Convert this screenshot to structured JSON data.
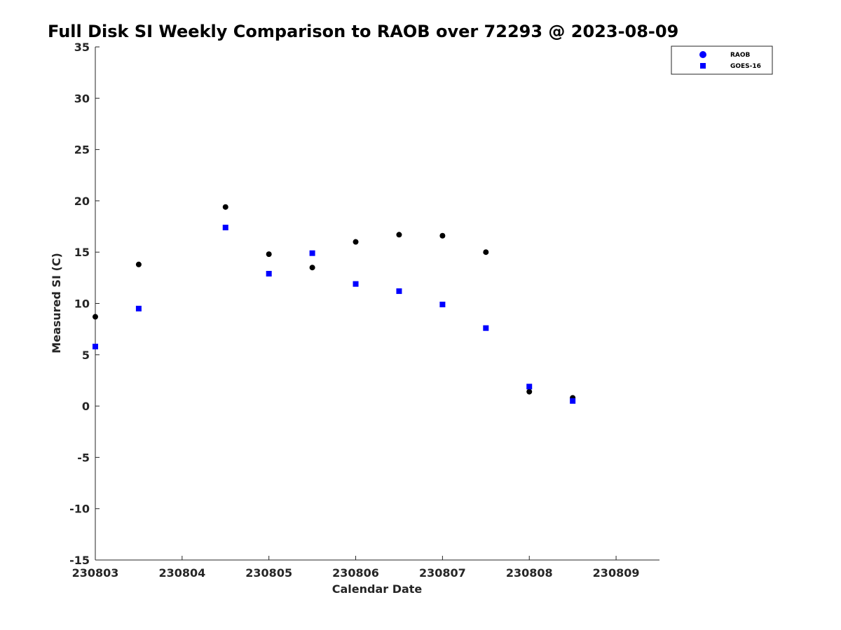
{
  "chart_data": {
    "type": "scatter",
    "title": "Full Disk SI Weekly Comparison to RAOB over 72293 @ 2023-08-09",
    "xlabel": "Calendar Date",
    "ylabel": "Measured SI (C)",
    "xlim": [
      230803,
      230809.5
    ],
    "ylim": [
      -15,
      35
    ],
    "x_ticks": [
      {
        "value": 230803,
        "label": "230803"
      },
      {
        "value": 230804,
        "label": "230804"
      },
      {
        "value": 230805,
        "label": "230805"
      },
      {
        "value": 230806,
        "label": "230806"
      },
      {
        "value": 230807,
        "label": "230807"
      },
      {
        "value": 230808,
        "label": "230808"
      },
      {
        "value": 230809,
        "label": "230809"
      }
    ],
    "y_ticks": [
      {
        "value": 35,
        "label": "35"
      },
      {
        "value": 30,
        "label": "30"
      },
      {
        "value": 25,
        "label": "25"
      },
      {
        "value": 20,
        "label": "20"
      },
      {
        "value": 15,
        "label": "15"
      },
      {
        "value": 10,
        "label": "10"
      },
      {
        "value": 5,
        "label": "5"
      },
      {
        "value": 0,
        "label": "0"
      },
      {
        "value": -5,
        "label": "-5"
      },
      {
        "value": -10,
        "label": "-10"
      },
      {
        "value": -15,
        "label": "-15"
      }
    ],
    "grid": false,
    "legend_position": "top-right",
    "series": [
      {
        "name": "RAOB",
        "marker": "circle",
        "color": "#000000",
        "legend_color": "#0000ff",
        "points": [
          {
            "x": 230803.0,
            "y": 8.7
          },
          {
            "x": 230803.5,
            "y": 13.8
          },
          {
            "x": 230804.5,
            "y": 19.4
          },
          {
            "x": 230805.0,
            "y": 14.8
          },
          {
            "x": 230805.5,
            "y": 13.5
          },
          {
            "x": 230806.0,
            "y": 16.0
          },
          {
            "x": 230806.5,
            "y": 16.7
          },
          {
            "x": 230807.0,
            "y": 16.6
          },
          {
            "x": 230807.5,
            "y": 15.0
          },
          {
            "x": 230808.0,
            "y": 1.4
          },
          {
            "x": 230808.5,
            "y": 0.8
          }
        ]
      },
      {
        "name": "GOES-16",
        "marker": "square",
        "color": "#0000ff",
        "legend_color": "#0000ff",
        "points": [
          {
            "x": 230803.0,
            "y": 5.8
          },
          {
            "x": 230803.5,
            "y": 9.5
          },
          {
            "x": 230804.5,
            "y": 17.4
          },
          {
            "x": 230805.0,
            "y": 12.9
          },
          {
            "x": 230805.5,
            "y": 14.9
          },
          {
            "x": 230806.0,
            "y": 11.9
          },
          {
            "x": 230806.5,
            "y": 11.2
          },
          {
            "x": 230807.0,
            "y": 9.9
          },
          {
            "x": 230807.5,
            "y": 7.6
          },
          {
            "x": 230808.0,
            "y": 1.9
          },
          {
            "x": 230808.5,
            "y": 0.5
          }
        ]
      }
    ]
  }
}
